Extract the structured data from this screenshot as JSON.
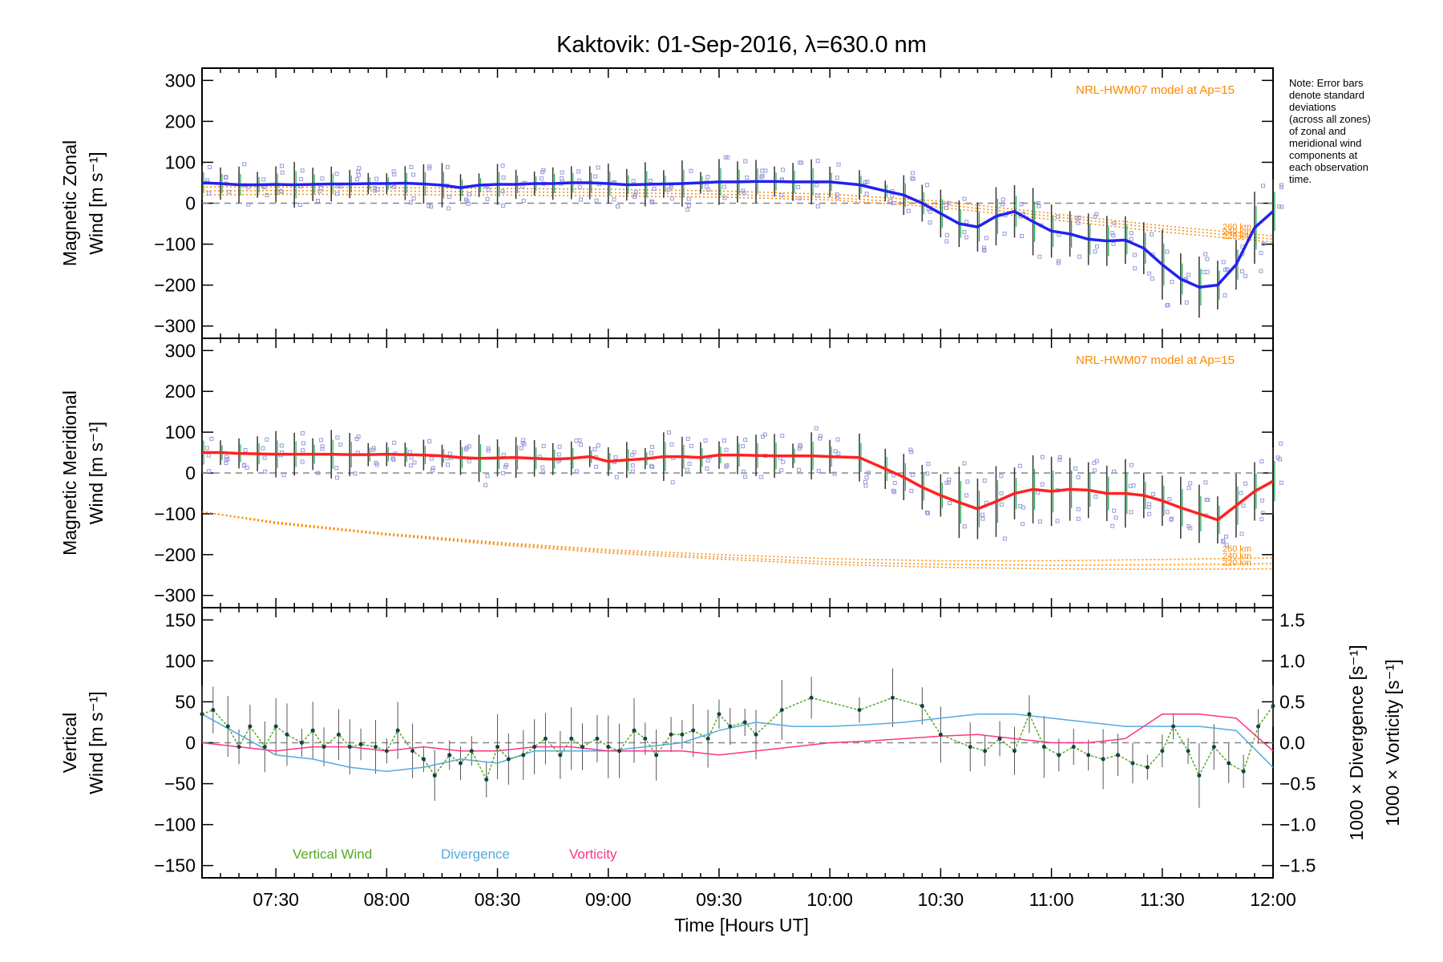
{
  "chart_data": {
    "type": "line",
    "title": "Kaktovik: 01-Sep-2016, λ=630.0 nm",
    "xlabel": "Time [Hours UT]",
    "x_ticks": [
      "07:30",
      "08:00",
      "08:30",
      "09:00",
      "09:30",
      "10:00",
      "10:30",
      "11:00",
      "11:30",
      "12:00"
    ],
    "xlim": [
      "07:10",
      "12:00"
    ],
    "note": [
      "Note: Error bars",
      "denote standard",
      "deviations",
      "(across all zones)",
      "of zonal and",
      "meridional wind",
      "components at",
      "each observation",
      "time."
    ],
    "panels": [
      {
        "id": "zonal",
        "ylabel": [
          "Magnetic Zonal",
          "Wind [m s⁻¹]"
        ],
        "ylim": [
          -330,
          330
        ],
        "y_ticks": [
          "300",
          "200",
          "100",
          "0",
          "−100",
          "−200",
          "−300"
        ],
        "model_label": "NRL-HWM07 model at Ap=15",
        "altitude_labels": [
          "260 km",
          "240 km",
          "220 km"
        ],
        "series": [
          {
            "color": "#2222ee",
            "x": [
              "07:10",
              "07:15",
              "07:20",
              "07:25",
              "07:30",
              "07:35",
              "07:40",
              "07:45",
              "07:50",
              "07:55",
              "08:00",
              "08:05",
              "08:10",
              "08:15",
              "08:20",
              "08:25",
              "08:30",
              "08:35",
              "08:40",
              "08:45",
              "08:50",
              "08:55",
              "09:00",
              "09:05",
              "09:10",
              "09:15",
              "09:20",
              "09:25",
              "09:30",
              "09:35",
              "09:40",
              "09:45",
              "09:50",
              "09:55",
              "10:00",
              "10:08",
              "10:15",
              "10:20",
              "10:25",
              "10:30",
              "10:35",
              "10:40",
              "10:45",
              "10:50",
              "10:55",
              "11:00",
              "11:05",
              "11:10",
              "11:15",
              "11:20",
              "11:25",
              "11:30",
              "11:35",
              "11:40",
              "11:45",
              "11:50",
              "11:55",
              "12:00"
            ],
            "y": [
              50,
              48,
              45,
              45,
              46,
              45,
              46,
              47,
              47,
              48,
              48,
              49,
              47,
              44,
              38,
              44,
              46,
              46,
              48,
              48,
              50,
              50,
              48,
              45,
              46,
              47,
              48,
              50,
              52,
              52,
              53,
              53,
              52,
              52,
              52,
              45,
              30,
              20,
              0,
              -25,
              -50,
              -58,
              -32,
              -20,
              -45,
              -68,
              -75,
              -88,
              -92,
              -90,
              -110,
              -150,
              -185,
              -205,
              -200,
              -150,
              -60,
              -20
            ]
          }
        ],
        "model_series": [
          {
            "name": "260 km",
            "x": [
              "07:10",
              "07:30",
              "08:00",
              "08:30",
              "09:00",
              "09:30",
              "10:00",
              "10:30",
              "11:00",
              "11:30",
              "12:00"
            ],
            "y": [
              40,
              40,
              38,
              36,
              34,
              30,
              22,
              5,
              -25,
              -55,
              -80
            ]
          },
          {
            "name": "240 km",
            "x": [
              "07:10",
              "07:30",
              "08:00",
              "08:30",
              "09:00",
              "09:30",
              "10:00",
              "10:30",
              "11:00",
              "11:30",
              "12:00"
            ],
            "y": [
              30,
              31,
              30,
              28,
              26,
              22,
              14,
              -3,
              -32,
              -62,
              -88
            ]
          },
          {
            "name": "220 km",
            "x": [
              "07:10",
              "07:30",
              "08:00",
              "08:30",
              "09:00",
              "09:30",
              "10:00",
              "10:30",
              "11:00",
              "11:30",
              "12:00"
            ],
            "y": [
              20,
              22,
              21,
              20,
              18,
              15,
              8,
              -10,
              -40,
              -70,
              -95
            ]
          }
        ]
      },
      {
        "id": "meridional",
        "ylabel": [
          "Magnetic Meridional",
          "Wind [m s⁻¹]"
        ],
        "ylim": [
          -330,
          330
        ],
        "y_ticks": [
          "300",
          "200",
          "100",
          "0",
          "−100",
          "−200",
          "−300"
        ],
        "model_label": "NRL-HWM07 model at Ap=15",
        "altitude_labels": [
          "260 km",
          "240 km",
          "220 km"
        ],
        "series": [
          {
            "color": "#ff2222",
            "x": [
              "07:10",
              "07:15",
              "07:20",
              "07:25",
              "07:30",
              "07:35",
              "07:40",
              "07:45",
              "07:50",
              "07:55",
              "08:00",
              "08:05",
              "08:10",
              "08:15",
              "08:20",
              "08:25",
              "08:30",
              "08:35",
              "08:40",
              "08:45",
              "08:50",
              "08:55",
              "09:00",
              "09:05",
              "09:10",
              "09:15",
              "09:20",
              "09:25",
              "09:30",
              "09:35",
              "09:40",
              "09:45",
              "09:50",
              "09:55",
              "10:00",
              "10:08",
              "10:15",
              "10:20",
              "10:25",
              "10:30",
              "10:35",
              "10:40",
              "10:45",
              "10:50",
              "10:55",
              "11:00",
              "11:05",
              "11:10",
              "11:15",
              "11:20",
              "11:25",
              "11:30",
              "11:35",
              "11:40",
              "11:45",
              "11:50",
              "11:55",
              "12:00"
            ],
            "y": [
              50,
              50,
              48,
              47,
              46,
              46,
              46,
              46,
              45,
              45,
              46,
              45,
              44,
              42,
              38,
              36,
              37,
              38,
              36,
              34,
              36,
              40,
              28,
              32,
              35,
              40,
              40,
              38,
              44,
              44,
              43,
              42,
              42,
              42,
              40,
              38,
              10,
              -10,
              -35,
              -55,
              -72,
              -88,
              -70,
              -50,
              -40,
              -45,
              -40,
              -42,
              -50,
              -50,
              -55,
              -68,
              -85,
              -100,
              -115,
              -80,
              -45,
              -20
            ]
          }
        ],
        "model_series": [
          {
            "name": "260 km",
            "x": [
              "07:10",
              "07:30",
              "08:00",
              "08:30",
              "09:00",
              "09:30",
              "10:00",
              "10:30",
              "11:00",
              "11:30",
              "12:00"
            ],
            "y": [
              -95,
              -120,
              -148,
              -170,
              -188,
              -200,
              -210,
              -215,
              -215,
              -212,
              -208
            ]
          },
          {
            "name": "240 km",
            "x": [
              "07:10",
              "07:30",
              "08:00",
              "08:30",
              "09:00",
              "09:30",
              "10:00",
              "10:30",
              "11:00",
              "11:30",
              "12:00"
            ],
            "y": [
              -95,
              -122,
              -150,
              -173,
              -192,
              -206,
              -218,
              -224,
              -226,
              -225,
              -222
            ]
          },
          {
            "name": "220 km",
            "x": [
              "07:10",
              "07:30",
              "08:00",
              "08:30",
              "09:00",
              "09:30",
              "10:00",
              "10:30",
              "11:00",
              "11:30",
              "12:00"
            ],
            "y": [
              -95,
              -124,
              -152,
              -176,
              -196,
              -211,
              -224,
              -231,
              -235,
              -236,
              -235
            ]
          }
        ]
      },
      {
        "id": "vertical",
        "ylabel_left": [
          "Vertical",
          "Wind [m s⁻¹]"
        ],
        "ylabel_right_1": "1000 × Divergence [s⁻¹]",
        "ylabel_right_2": "1000 × Vorticity [s⁻¹]",
        "ylim": [
          -165,
          165
        ],
        "y_ticks": [
          "150",
          "100",
          "50",
          "0",
          "−50",
          "−100",
          "−150"
        ],
        "ylim_right": [
          -1.65,
          1.65
        ],
        "y_ticks_right": [
          "1.5",
          "1.0",
          "0.5",
          "0.0",
          "−0.5",
          "−1.0",
          "−1.5"
        ],
        "legend": [
          "Vertical Wind",
          "Divergence",
          "Vorticity"
        ],
        "series": [
          {
            "name": "Vertical Wind",
            "color": "#55aa22",
            "x": [
              "07:10",
              "07:13",
              "07:17",
              "07:20",
              "07:23",
              "07:27",
              "07:30",
              "07:33",
              "07:37",
              "07:40",
              "07:43",
              "07:47",
              "07:50",
              "07:53",
              "07:57",
              "08:00",
              "08:03",
              "08:07",
              "08:10",
              "08:13",
              "08:17",
              "08:20",
              "08:23",
              "08:27",
              "08:30",
              "08:33",
              "08:37",
              "08:40",
              "08:43",
              "08:47",
              "08:50",
              "08:53",
              "08:57",
              "09:00",
              "09:03",
              "09:07",
              "09:10",
              "09:13",
              "09:17",
              "09:20",
              "09:23",
              "09:27",
              "09:30",
              "09:33",
              "09:37",
              "09:40",
              "09:47",
              "09:55",
              "10:08",
              "10:17",
              "10:25",
              "10:30",
              "10:38",
              "10:42",
              "10:46",
              "10:50",
              "10:54",
              "10:58",
              "11:02",
              "11:06",
              "11:10",
              "11:14",
              "11:18",
              "11:22",
              "11:26",
              "11:30",
              "11:33",
              "11:37",
              "11:40",
              "11:44",
              "11:48",
              "11:52",
              "11:56",
              "12:00"
            ],
            "y": [
              35,
              40,
              20,
              -5,
              20,
              -5,
              20,
              10,
              0,
              15,
              -5,
              10,
              -5,
              -2,
              -5,
              -10,
              15,
              -10,
              -20,
              -40,
              -15,
              -25,
              -10,
              -45,
              -5,
              -20,
              -15,
              -5,
              5,
              -15,
              5,
              -5,
              5,
              -5,
              -10,
              15,
              5,
              -15,
              10,
              10,
              15,
              5,
              35,
              20,
              25,
              10,
              40,
              55,
              40,
              55,
              45,
              10,
              -5,
              -10,
              5,
              -10,
              35,
              -5,
              -15,
              -5,
              -15,
              -20,
              -15,
              -25,
              -30,
              -10,
              20,
              -10,
              -40,
              -5,
              -25,
              -35,
              20,
              45
            ]
          },
          {
            "name": "Divergence",
            "color": "#55aadd",
            "x": [
              "07:10",
              "07:20",
              "07:30",
              "07:40",
              "07:50",
              "08:00",
              "08:10",
              "08:20",
              "08:30",
              "08:40",
              "08:50",
              "09:00",
              "09:10",
              "09:20",
              "09:30",
              "09:40",
              "09:50",
              "10:00",
              "10:10",
              "10:20",
              "10:30",
              "10:40",
              "10:50",
              "11:00",
              "11:10",
              "11:20",
              "11:30",
              "11:40",
              "11:50",
              "12:00"
            ],
            "y": [
              0.35,
              0.1,
              -0.15,
              -0.2,
              -0.3,
              -0.35,
              -0.3,
              -0.2,
              -0.25,
              -0.1,
              -0.1,
              -0.1,
              -0.05,
              0.0,
              0.15,
              0.25,
              0.2,
              0.2,
              0.22,
              0.25,
              0.3,
              0.35,
              0.35,
              0.3,
              0.25,
              0.2,
              0.2,
              0.2,
              0.15,
              -0.3
            ]
          },
          {
            "name": "Vorticity",
            "color": "#ff3388",
            "x": [
              "07:10",
              "07:20",
              "07:30",
              "07:40",
              "07:50",
              "08:00",
              "08:10",
              "08:20",
              "08:30",
              "08:40",
              "08:50",
              "09:00",
              "09:10",
              "09:20",
              "09:30",
              "09:40",
              "09:50",
              "10:00",
              "10:10",
              "10:20",
              "10:30",
              "10:40",
              "10:50",
              "11:00",
              "11:10",
              "11:20",
              "11:30",
              "11:40",
              "11:50",
              "12:00"
            ],
            "y": [
              0.0,
              -0.05,
              -0.1,
              -0.05,
              -0.05,
              -0.1,
              -0.05,
              -0.1,
              -0.1,
              -0.05,
              -0.05,
              -0.1,
              -0.1,
              -0.1,
              -0.15,
              -0.1,
              -0.05,
              0.0,
              0.02,
              0.05,
              0.08,
              0.1,
              0.05,
              0.0,
              0.0,
              0.05,
              0.35,
              0.35,
              0.3,
              -0.1
            ]
          }
        ]
      }
    ]
  }
}
